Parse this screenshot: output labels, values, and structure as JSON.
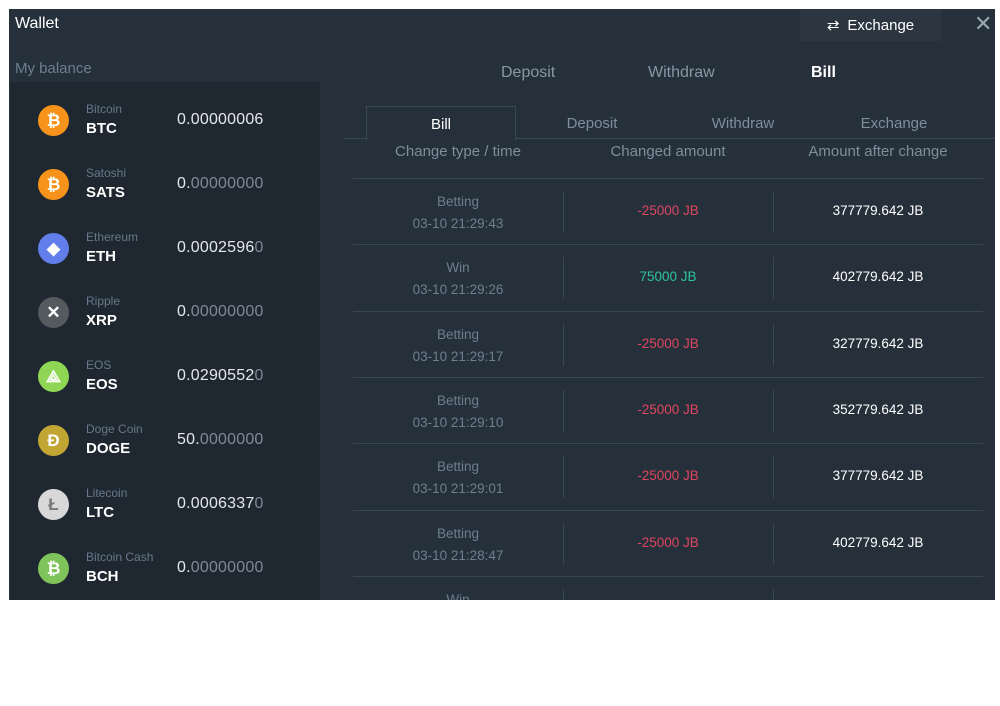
{
  "header": {
    "title": "Wallet",
    "exchange_button": "Exchange",
    "close": "✕"
  },
  "balance": {
    "label": "My balance",
    "coins": [
      {
        "name": "Bitcoin",
        "symbol": "BTC",
        "amount_main": "0.00000006",
        "amount_dim": "",
        "color": "#f7931a",
        "glyph": "₿",
        "icon": "bitcoin-icon"
      },
      {
        "name": "Satoshi",
        "symbol": "SATS",
        "amount_main": "0.",
        "amount_dim": "00000000",
        "color": "#f7931a",
        "glyph": "₿",
        "icon": "satoshi-icon"
      },
      {
        "name": "Ethereum",
        "symbol": "ETH",
        "amount_main": "0.0002596",
        "amount_dim": "0",
        "color": "#627eea",
        "glyph": "◆",
        "icon": "ethereum-icon"
      },
      {
        "name": "Ripple",
        "symbol": "XRP",
        "amount_main": "0.",
        "amount_dim": "00000000",
        "color": "#555a5f",
        "glyph": "✕",
        "icon": "ripple-icon"
      },
      {
        "name": "EOS",
        "symbol": "EOS",
        "amount_main": "0.0290552",
        "amount_dim": "0",
        "color": "#8ed653",
        "glyph": "⟁",
        "icon": "eos-icon"
      },
      {
        "name": "Doge Coin",
        "symbol": "DOGE",
        "amount_main": "50.",
        "amount_dim": "0000000",
        "color": "#c2a633",
        "glyph": "Đ",
        "icon": "doge-icon"
      },
      {
        "name": "Litecoin",
        "symbol": "LTC",
        "amount_main": "0.0006337",
        "amount_dim": "0",
        "color": "#d8d8d8",
        "glyph": "Ł",
        "icon": "litecoin-icon"
      },
      {
        "name": "Bitcoin Cash",
        "symbol": "BCH",
        "amount_main": "0.",
        "amount_dim": "00000000",
        "color": "#7fc35b",
        "glyph": "₿",
        "icon": "bitcoin-cash-icon"
      }
    ]
  },
  "top_tabs": [
    "Deposit",
    "Withdraw",
    "Bill"
  ],
  "active_top_tab": "Bill",
  "sub_tabs": [
    "Bill",
    "Deposit",
    "Withdraw",
    "Exchange"
  ],
  "active_sub_tab": "Bill",
  "table": {
    "headers": [
      "Change type / time",
      "Changed amount",
      "Amount after change"
    ],
    "rows": [
      {
        "type": "Betting",
        "time": "03-10 21:29:43",
        "change": "-25000 JB",
        "after": "377779.642 JB"
      },
      {
        "type": "Win",
        "time": "03-10 21:29:26",
        "change": "75000 JB",
        "after": "402779.642 JB"
      },
      {
        "type": "Betting",
        "time": "03-10 21:29:17",
        "change": "-25000 JB",
        "after": "327779.642 JB"
      },
      {
        "type": "Betting",
        "time": "03-10 21:29:10",
        "change": "-25000 JB",
        "after": "352779.642 JB"
      },
      {
        "type": "Betting",
        "time": "03-10 21:29:01",
        "change": "-25000 JB",
        "after": "377779.642 JB"
      },
      {
        "type": "Betting",
        "time": "03-10 21:28:47",
        "change": "-25000 JB",
        "after": "402779.642 JB"
      },
      {
        "type": "Win",
        "time": "",
        "change": "",
        "after": ""
      }
    ]
  },
  "colors": {
    "negative": "#e0455f",
    "positive": "#2ec2a0"
  }
}
